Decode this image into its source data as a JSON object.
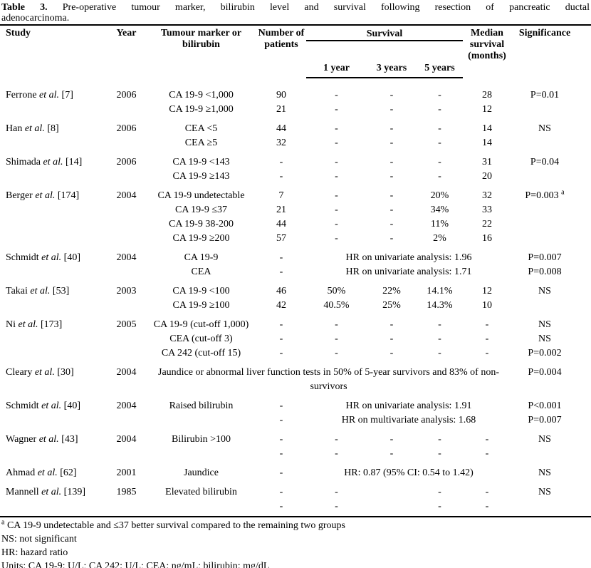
{
  "colors": {
    "text": "#000000",
    "background": "#ffffff",
    "rule": "#000000"
  },
  "caption": {
    "label": "Table 3.",
    "line1_rest": " Pre-operative tumour marker, bilirubin level and survival following resection of pancreatic ductal",
    "line2": "adenocarcinoma."
  },
  "header": {
    "study": "Study",
    "year": "Year",
    "marker": "Tumour marker or bilirubin",
    "patients": "Number of patients",
    "survival": "Survival",
    "sub": [
      "1 year",
      "3 years",
      "5 years"
    ],
    "median": "Median survival (months)",
    "significance": "Significance"
  },
  "rows": [
    {
      "first": true,
      "study": [
        "Ferrone ",
        "et al.",
        " [7]"
      ],
      "year": "2006",
      "cells": [
        {
          "col": 3,
          "text": "CA 19-9 <1,000"
        },
        {
          "col": 4,
          "text": "90"
        },
        {
          "col": 5,
          "text": "-"
        },
        {
          "col": 6,
          "text": "-"
        },
        {
          "col": 7,
          "text": "-"
        },
        {
          "col": 8,
          "text": "28"
        },
        {
          "col": 9,
          "text": "P=0.01"
        }
      ]
    },
    {
      "cells": [
        {
          "col": 3,
          "text": "CA 19-9 ≥1,000"
        },
        {
          "col": 4,
          "text": "21"
        },
        {
          "col": 5,
          "text": "-"
        },
        {
          "col": 6,
          "text": "-"
        },
        {
          "col": 7,
          "text": "-"
        },
        {
          "col": 8,
          "text": "12"
        }
      ]
    },
    {
      "first": true,
      "study": [
        "Han ",
        "et al.",
        " [8]"
      ],
      "year": "2006",
      "cells": [
        {
          "col": 3,
          "text": "CEA <5"
        },
        {
          "col": 4,
          "text": "44"
        },
        {
          "col": 5,
          "text": "-"
        },
        {
          "col": 6,
          "text": "-"
        },
        {
          "col": 7,
          "text": "-"
        },
        {
          "col": 8,
          "text": "14"
        },
        {
          "col": 9,
          "text": "NS"
        }
      ]
    },
    {
      "cells": [
        {
          "col": 3,
          "text": "CEA ≥5"
        },
        {
          "col": 4,
          "text": "32"
        },
        {
          "col": 5,
          "text": "-"
        },
        {
          "col": 6,
          "text": "-"
        },
        {
          "col": 7,
          "text": "-"
        },
        {
          "col": 8,
          "text": "14"
        }
      ]
    },
    {
      "first": true,
      "study": [
        "Shimada ",
        "et al.",
        " [14]"
      ],
      "year": "2006",
      "cells": [
        {
          "col": 3,
          "text": "CA 19-9 <143"
        },
        {
          "col": 4,
          "text": "-"
        },
        {
          "col": 5,
          "text": "-"
        },
        {
          "col": 6,
          "text": "-"
        },
        {
          "col": 7,
          "text": "-"
        },
        {
          "col": 8,
          "text": "31"
        },
        {
          "col": 9,
          "text": "P=0.04"
        }
      ]
    },
    {
      "cells": [
        {
          "col": 3,
          "text": "CA 19-9 ≥143"
        },
        {
          "col": 4,
          "text": "-"
        },
        {
          "col": 5,
          "text": "-"
        },
        {
          "col": 6,
          "text": "-"
        },
        {
          "col": 7,
          "text": "-"
        },
        {
          "col": 8,
          "text": "20"
        }
      ]
    },
    {
      "first": true,
      "study": [
        "Berger ",
        "et al.",
        " [174]"
      ],
      "year": "2004",
      "cells": [
        {
          "col": 3,
          "text": "CA 19-9 undetectable"
        },
        {
          "col": 4,
          "text": "7"
        },
        {
          "col": 5,
          "text": "-"
        },
        {
          "col": 6,
          "text": "-"
        },
        {
          "col": 7,
          "text": "20%"
        },
        {
          "col": 8,
          "text": "32"
        },
        {
          "col": 9,
          "text": "P=0.003 ",
          "sup": "a"
        }
      ]
    },
    {
      "cells": [
        {
          "col": 3,
          "text": "CA 19-9 ≤37"
        },
        {
          "col": 4,
          "text": "21"
        },
        {
          "col": 5,
          "text": "-"
        },
        {
          "col": 6,
          "text": "-"
        },
        {
          "col": 7,
          "text": "34%"
        },
        {
          "col": 8,
          "text": "33"
        }
      ]
    },
    {
      "cells": [
        {
          "col": 3,
          "text": "CA 19-9 38-200"
        },
        {
          "col": 4,
          "text": "44"
        },
        {
          "col": 5,
          "text": "-"
        },
        {
          "col": 6,
          "text": "-"
        },
        {
          "col": 7,
          "text": "11%"
        },
        {
          "col": 8,
          "text": "22"
        }
      ]
    },
    {
      "cells": [
        {
          "col": 3,
          "text": "CA 19-9 ≥200"
        },
        {
          "col": 4,
          "text": "57"
        },
        {
          "col": 5,
          "text": "-"
        },
        {
          "col": 6,
          "text": "-"
        },
        {
          "col": 7,
          "text": "2%"
        },
        {
          "col": 8,
          "text": "16"
        }
      ]
    },
    {
      "first": true,
      "study": [
        "Schmidt ",
        "et al.",
        " [40]"
      ],
      "year": "2004",
      "cells": [
        {
          "col": 3,
          "text": "CA 19-9"
        },
        {
          "col": 4,
          "text": "-"
        },
        {
          "col": 5,
          "span": 4,
          "text": "HR on univariate analysis: 1.96"
        },
        {
          "col": 9,
          "text": "P=0.007"
        }
      ]
    },
    {
      "cells": [
        {
          "col": 3,
          "text": "CEA"
        },
        {
          "col": 4,
          "text": "-"
        },
        {
          "col": 5,
          "span": 4,
          "text": "HR on univariate analysis: 1.71"
        },
        {
          "col": 9,
          "text": "P=0.008"
        }
      ]
    },
    {
      "first": true,
      "study": [
        "Takai ",
        "et al.",
        " [53]"
      ],
      "year": "2003",
      "cells": [
        {
          "col": 3,
          "text": "CA 19-9 <100"
        },
        {
          "col": 4,
          "text": "46"
        },
        {
          "col": 5,
          "text": "50%"
        },
        {
          "col": 6,
          "text": "22%"
        },
        {
          "col": 7,
          "text": "14.1%"
        },
        {
          "col": 8,
          "text": "12"
        },
        {
          "col": 9,
          "text": "NS"
        }
      ]
    },
    {
      "cells": [
        {
          "col": 3,
          "text": "CA 19-9 ≥100"
        },
        {
          "col": 4,
          "text": "42"
        },
        {
          "col": 5,
          "text": "40.5%"
        },
        {
          "col": 6,
          "text": "25%"
        },
        {
          "col": 7,
          "text": "14.3%"
        },
        {
          "col": 8,
          "text": "10"
        }
      ]
    },
    {
      "first": true,
      "study": [
        "Ni ",
        "et al.",
        " [173]"
      ],
      "year": "2005",
      "cells": [
        {
          "col": 3,
          "text": "CA 19-9 (cut-off 1,000)"
        },
        {
          "col": 4,
          "text": "-"
        },
        {
          "col": 5,
          "text": "-"
        },
        {
          "col": 6,
          "text": "-"
        },
        {
          "col": 7,
          "text": "-"
        },
        {
          "col": 8,
          "text": "-"
        },
        {
          "col": 9,
          "text": "NS"
        }
      ]
    },
    {
      "cells": [
        {
          "col": 3,
          "text": "CEA (cut-off 3)"
        },
        {
          "col": 4,
          "text": "-"
        },
        {
          "col": 5,
          "text": "-"
        },
        {
          "col": 6,
          "text": "-"
        },
        {
          "col": 7,
          "text": "-"
        },
        {
          "col": 8,
          "text": "-"
        },
        {
          "col": 9,
          "text": "NS"
        }
      ]
    },
    {
      "cells": [
        {
          "col": 3,
          "text": "CA 242 (cut-off 15)"
        },
        {
          "col": 4,
          "text": "-"
        },
        {
          "col": 5,
          "text": "-"
        },
        {
          "col": 6,
          "text": "-"
        },
        {
          "col": 7,
          "text": "-"
        },
        {
          "col": 8,
          "text": "-"
        },
        {
          "col": 9,
          "text": "P=0.002"
        }
      ]
    },
    {
      "first": true,
      "tall": true,
      "study": [
        "Cleary ",
        "et al.",
        " [30]"
      ],
      "year": "2004",
      "cells": [
        {
          "col": 3,
          "span": 6,
          "text": "Jaundice or abnormal liver function tests in 50% of 5-year survivors and 83% of non-survivors"
        },
        {
          "col": 9,
          "text": "P=0.004"
        }
      ]
    },
    {
      "first": true,
      "study": [
        "Schmidt ",
        "et al.",
        " [40]"
      ],
      "year": "2004",
      "cells": [
        {
          "col": 3,
          "text": "Raised bilirubin"
        },
        {
          "col": 4,
          "text": "-"
        },
        {
          "col": 5,
          "span": 4,
          "text": "HR on univariate analysis: 1.91"
        },
        {
          "col": 9,
          "text": "P<0.001"
        }
      ]
    },
    {
      "cells": [
        {
          "col": 4,
          "text": "-"
        },
        {
          "col": 5,
          "span": 4,
          "text": "HR on multivariate analysis: 1.68"
        },
        {
          "col": 9,
          "text": "P=0.007"
        }
      ]
    },
    {
      "first": true,
      "study": [
        "Wagner ",
        "et al.",
        " [43]"
      ],
      "year": "2004",
      "cells": [
        {
          "col": 3,
          "text": "Bilirubin >100"
        },
        {
          "col": 4,
          "text": "-"
        },
        {
          "col": 5,
          "text": "-"
        },
        {
          "col": 6,
          "text": "-"
        },
        {
          "col": 7,
          "text": "-"
        },
        {
          "col": 8,
          "text": "-"
        },
        {
          "col": 9,
          "text": "NS"
        }
      ]
    },
    {
      "cells": [
        {
          "col": 4,
          "text": "-"
        },
        {
          "col": 5,
          "text": "-"
        },
        {
          "col": 6,
          "text": "-"
        },
        {
          "col": 7,
          "text": "-"
        },
        {
          "col": 8,
          "text": "-"
        }
      ]
    },
    {
      "first": true,
      "study": [
        "Ahmad ",
        "et al.",
        " [62]"
      ],
      "year": "2001",
      "cells": [
        {
          "col": 3,
          "text": "Jaundice"
        },
        {
          "col": 4,
          "text": "-"
        },
        {
          "col": 5,
          "span": 4,
          "text": "HR: 0.87 (95% CI: 0.54 to 1.42)"
        },
        {
          "col": 9,
          "text": "NS"
        }
      ]
    },
    {
      "first": true,
      "study": [
        "Mannell ",
        "et al.",
        " [139]"
      ],
      "year": "1985",
      "cells": [
        {
          "col": 3,
          "text": "Elevated bilirubin"
        },
        {
          "col": 4,
          "text": "-"
        },
        {
          "col": 5,
          "text": "-"
        },
        {
          "col": 7,
          "text": "-"
        },
        {
          "col": 8,
          "text": "-"
        },
        {
          "col": 9,
          "text": "NS"
        }
      ]
    },
    {
      "cells": [
        {
          "col": 4,
          "text": "-"
        },
        {
          "col": 5,
          "text": "-"
        },
        {
          "col": 7,
          "text": "-"
        },
        {
          "col": 8,
          "text": "-"
        }
      ]
    }
  ],
  "footnotes": [
    {
      "sup": "a",
      "text": " CA 19-9  undetectable and ≤37 better survival compared to the remaining two groups"
    },
    {
      "sup": "",
      "text": "NS: not significant"
    },
    {
      "sup": "",
      "text": "HR: hazard ratio"
    },
    {
      "sup": "",
      "text": "Units: CA 19-9: U/L; CA 242: U/L; CEA: ng/mL; bilirubin: mg/dL"
    }
  ]
}
